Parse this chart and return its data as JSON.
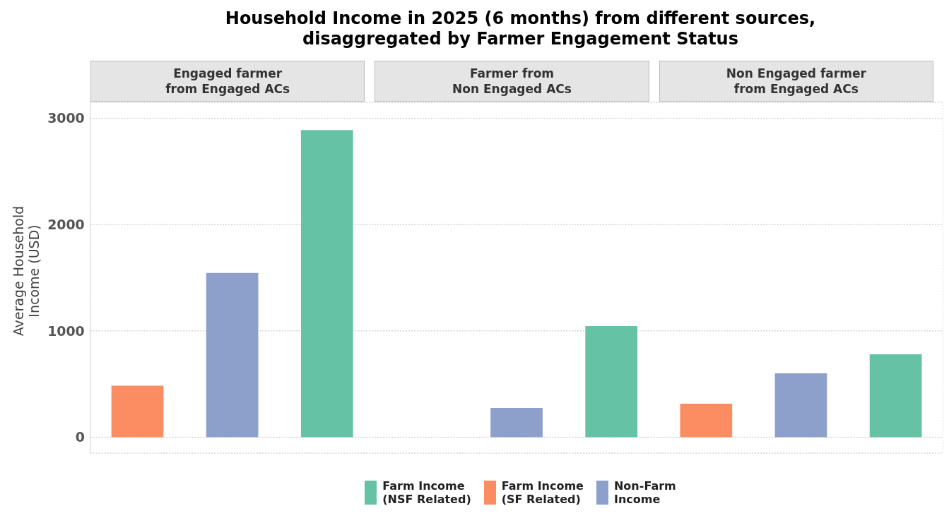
{
  "chart_data": {
    "type": "bar",
    "title": "Household Income in 2025 (6 months) from different sources,\ndisaggregated by Farmer Engagement Status",
    "ylabel": "Average Household\nIncome (USD)",
    "annotations": [
      "Engaged farmer\nfrom Engaged ACs",
      "Farmer from\nNon Engaged ACs",
      "Non Engaged farmer\nfrom Engaged ACs"
    ],
    "categories": [
      null,
      null,
      null,
      null,
      null,
      null,
      null,
      null,
      null
    ],
    "series": [
      {
        "name": "Farm Income\n(NSF Related)",
        "color": "#66c2a5",
        "values": [
          null,
          null,
          2890,
          null,
          null,
          1045,
          null,
          null,
          780
        ]
      },
      {
        "name": "Farm Income\n(SF Related)",
        "color": "#fc8d62",
        "values": [
          485,
          null,
          null,
          null,
          null,
          null,
          315,
          null,
          null
        ]
      },
      {
        "name": "Non-Farm\nIncome",
        "color": "#8da0cb",
        "values": [
          null,
          1545,
          null,
          null,
          275,
          null,
          null,
          600,
          null
        ]
      }
    ],
    "ylim": [
      -150,
      3150
    ],
    "yticks": [
      0,
      1000,
      2000,
      3000
    ],
    "grid": true,
    "tick_labels": "y",
    "legend": "bottom"
  }
}
